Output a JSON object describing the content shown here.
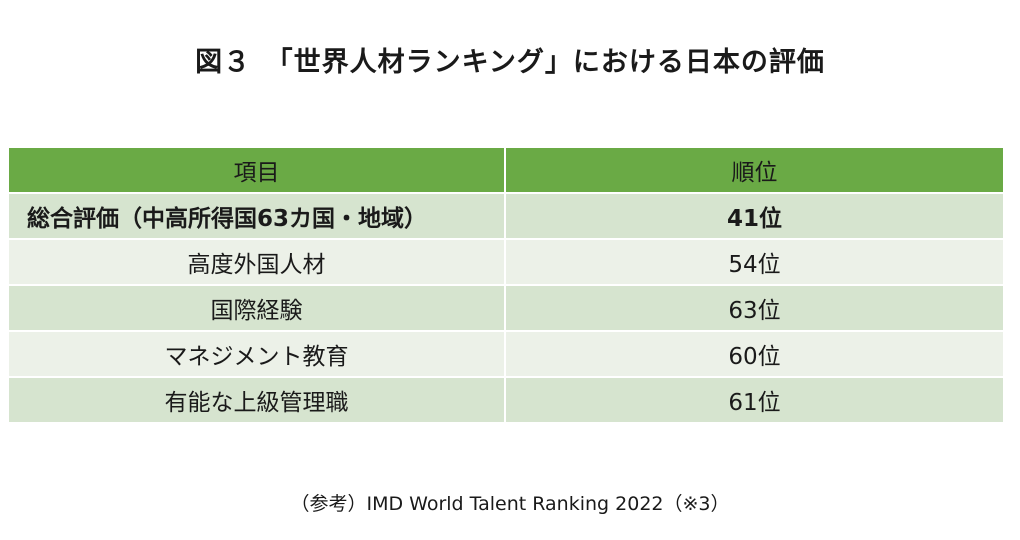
{
  "title": "図３　「世界人材ランキング」における日本の評価",
  "table": {
    "headers": [
      "項目",
      "順位"
    ],
    "rows": [
      {
        "item": "総合評価（中高所得国63カ国・地域）",
        "rank": "41位"
      },
      {
        "item": "高度外国人材",
        "rank": "54位"
      },
      {
        "item": "国際経験",
        "rank": "63位"
      },
      {
        "item": "マネジメント教育",
        "rank": "60位"
      },
      {
        "item": "有能な上級管理職",
        "rank": "61位"
      }
    ]
  },
  "source": "（参考）IMD World Talent Ranking 2022（※3）",
  "colors": {
    "header": "#6aaa45",
    "row_dark": "#d6e4cf",
    "row_light": "#ecf1e8"
  }
}
